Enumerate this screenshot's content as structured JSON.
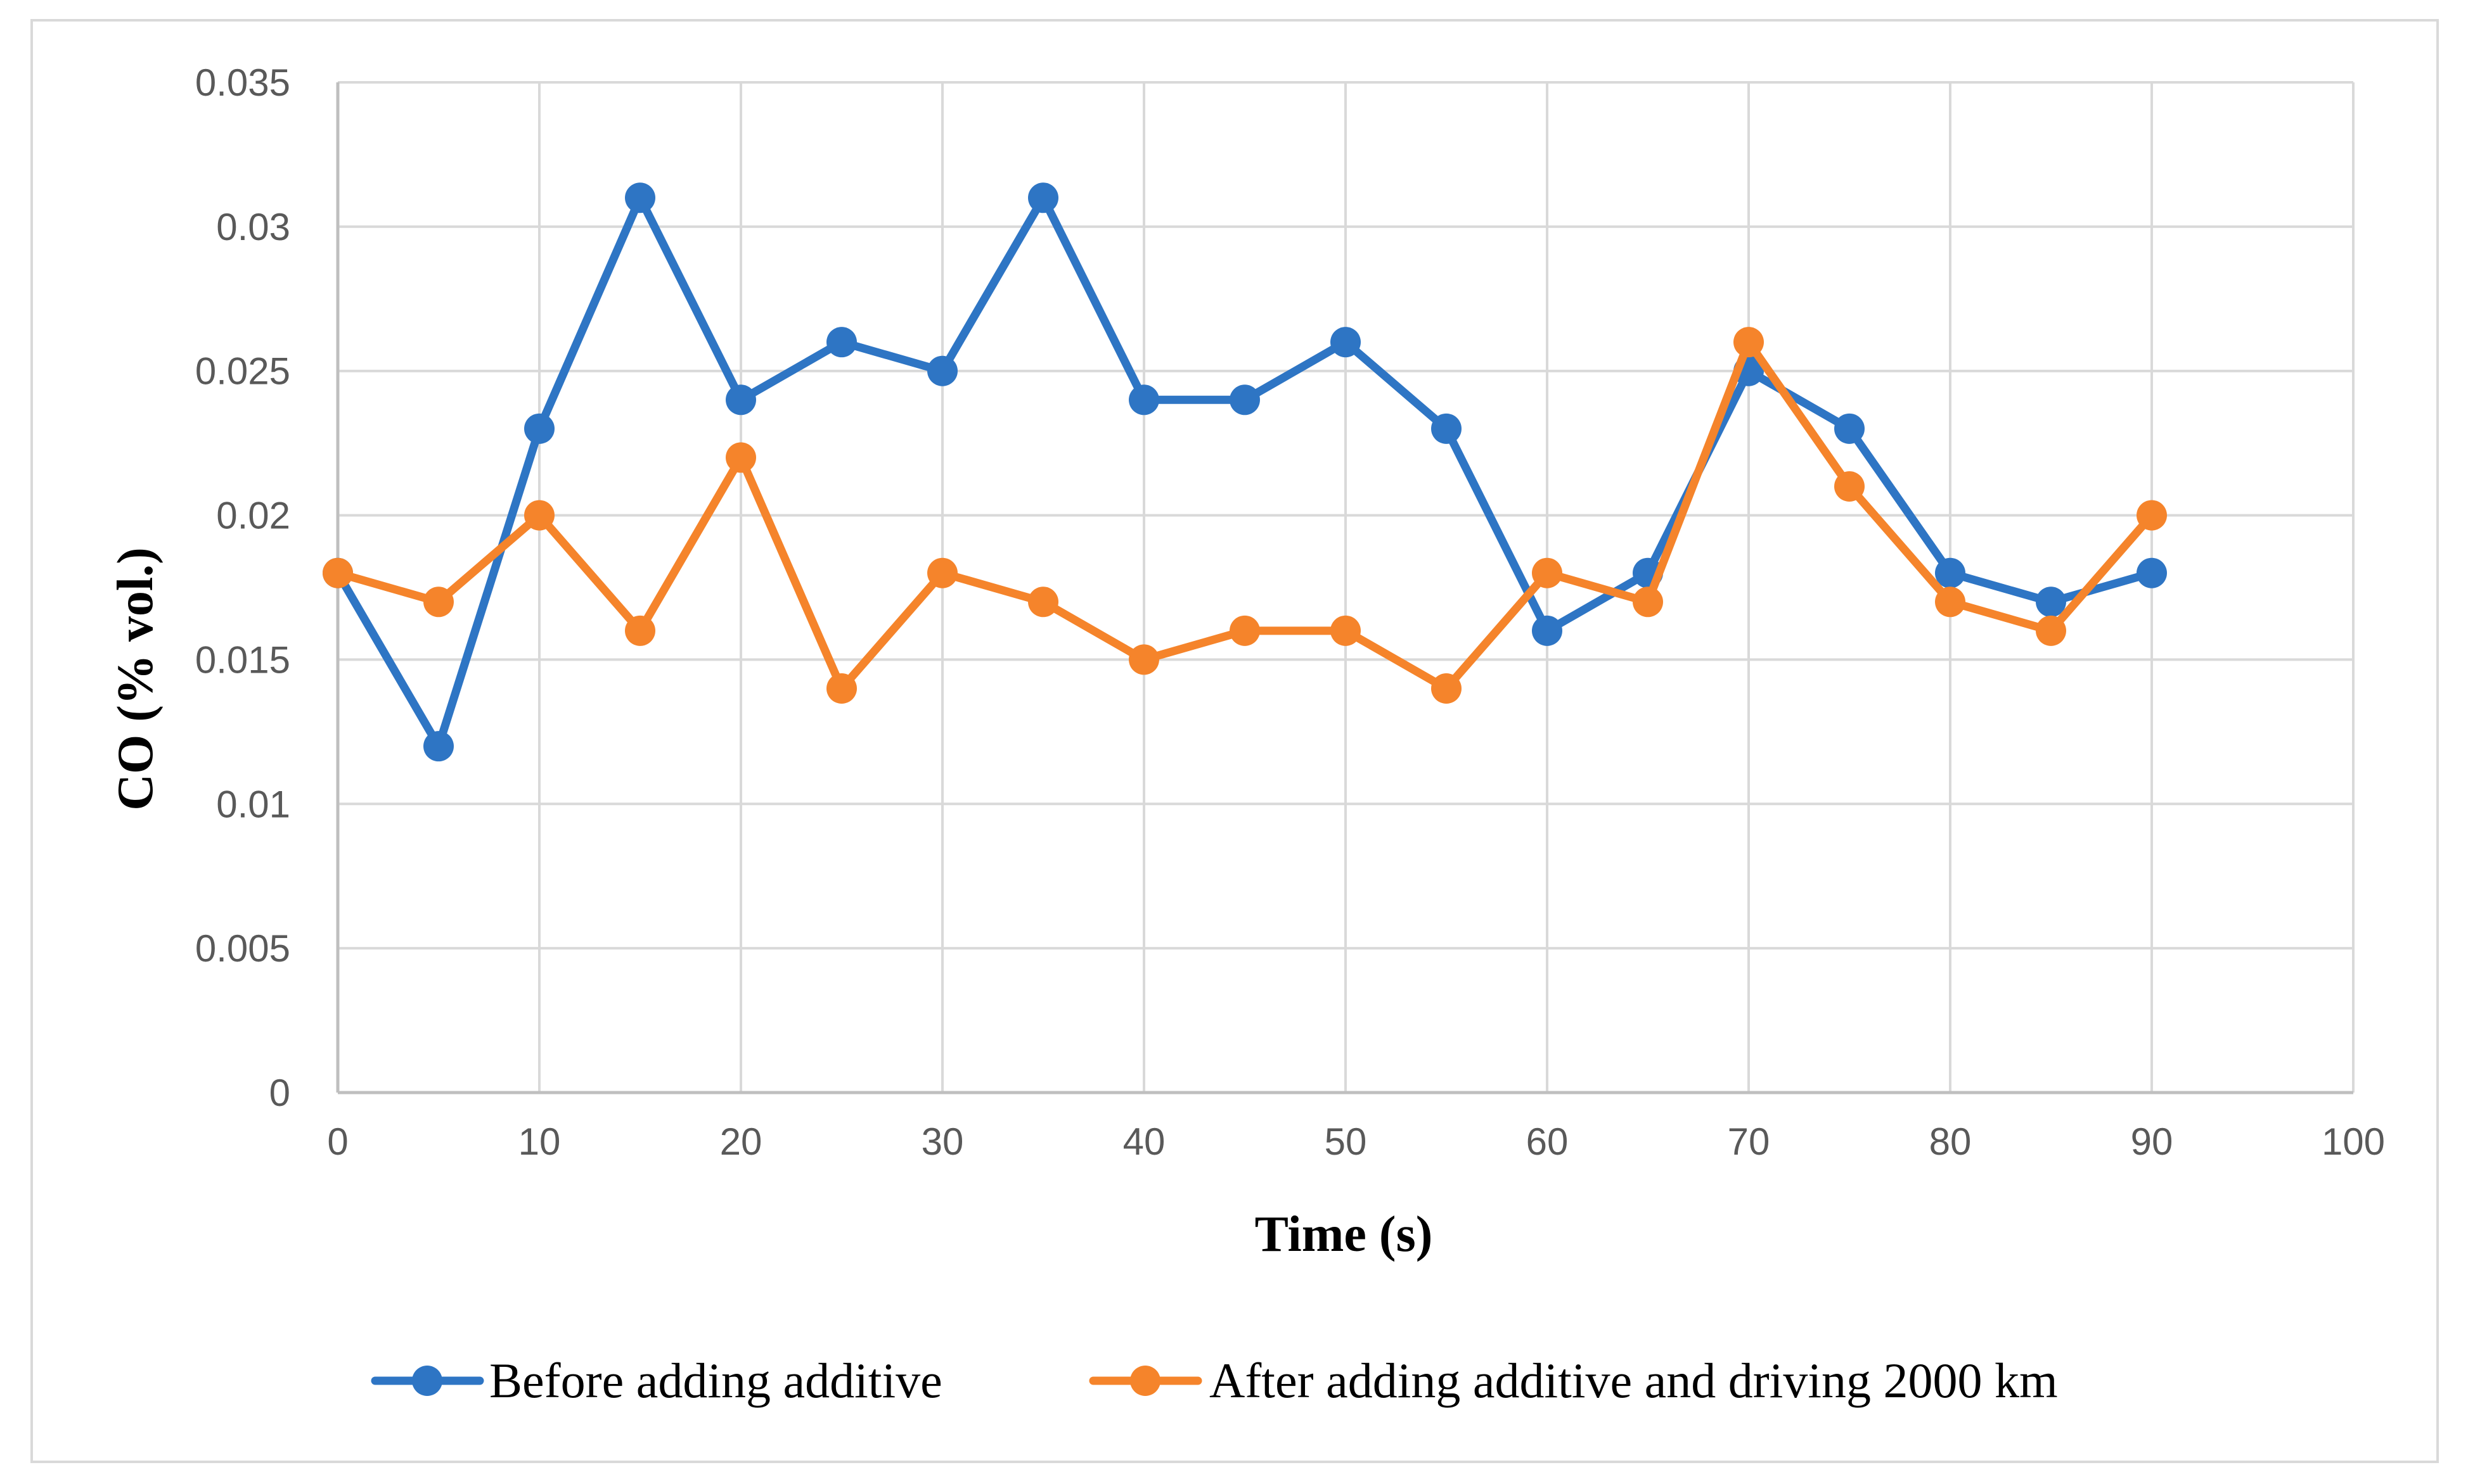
{
  "chart_data": {
    "type": "line",
    "title": "",
    "xlabel": "Time (s)",
    "ylabel": "CO (% vol.)",
    "xlim": [
      0,
      100
    ],
    "ylim": [
      0,
      0.035
    ],
    "x_ticks": [
      "0",
      "10",
      "20",
      "30",
      "40",
      "50",
      "60",
      "70",
      "80",
      "90",
      "100"
    ],
    "y_ticks": [
      "0",
      "0.005",
      "0.01",
      "0.015",
      "0.02",
      "0.025",
      "0.03",
      "0.035"
    ],
    "grid": true,
    "legend_position": "bottom",
    "x": [
      0,
      5,
      10,
      15,
      20,
      25,
      30,
      35,
      40,
      45,
      50,
      55,
      60,
      65,
      70,
      75,
      80,
      85,
      90
    ],
    "series": [
      {
        "name": "Before adding additive",
        "color": "#2E75C4",
        "values": [
          0.018,
          0.012,
          0.023,
          0.031,
          0.024,
          0.026,
          0.025,
          0.031,
          0.024,
          0.024,
          0.026,
          0.023,
          0.016,
          0.018,
          0.025,
          0.023,
          0.018,
          0.017,
          0.018
        ]
      },
      {
        "name": "After adding additive and driving 2000 km",
        "color": "#F5842B",
        "values": [
          0.018,
          0.017,
          0.02,
          0.016,
          0.022,
          0.014,
          0.018,
          0.017,
          0.015,
          0.016,
          0.016,
          0.014,
          0.018,
          0.017,
          0.026,
          0.021,
          0.017,
          0.016,
          0.02
        ]
      }
    ]
  },
  "colors": {
    "grid": "#d9d9d9",
    "axis": "#bfbfbf",
    "frame": "#d9d9d9"
  }
}
